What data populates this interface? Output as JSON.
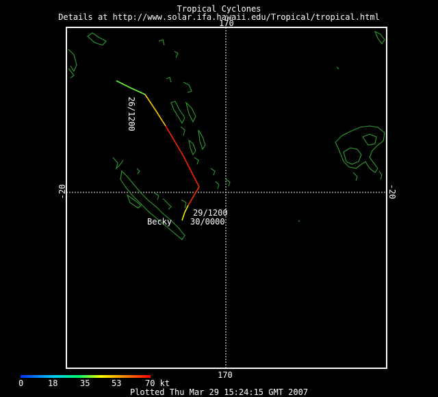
{
  "header": {
    "title": "Tropical Cyclones",
    "subtitle": "Details at http://www.solar.ifa.hawaii.edu/Tropical/tropical.html"
  },
  "grid": {
    "lon_label_top": "170",
    "lon_label_bottom": "170",
    "lat_label_left": "-20",
    "lat_label_right": "-20"
  },
  "storm": {
    "name": "Becky",
    "labels": [
      "26/1200",
      "29/1200",
      "30/0000"
    ]
  },
  "colorbar": {
    "ticks": [
      "0",
      "18",
      "35",
      "53",
      "70 kt"
    ],
    "colors": [
      "#0000ff",
      "#00ffff",
      "#00ff00",
      "#ffff00",
      "#ff0000"
    ]
  },
  "footer": {
    "plotted": "Plotted Thu Mar 29 15:24:15 GMT 2007"
  },
  "colors": {
    "land": "#2e9e2e",
    "frame": "#ffffff",
    "grid": "#ffffff"
  }
}
